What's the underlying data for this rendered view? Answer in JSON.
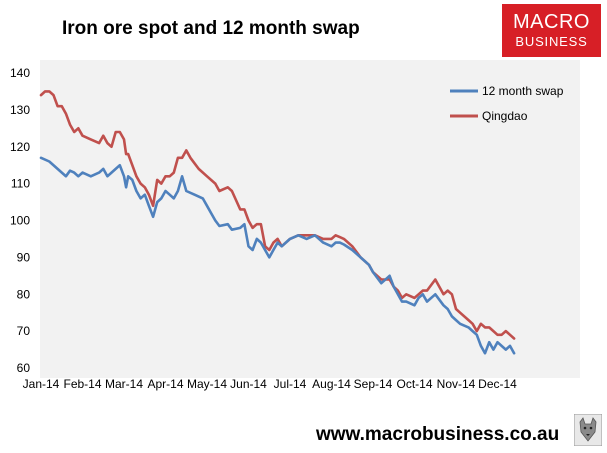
{
  "header": {
    "title": "Iron ore spot and 12 month swap",
    "logo_line1": "MACRO",
    "logo_line2": "BUSINESS"
  },
  "footer": {
    "url": "www.macrobusiness.co.au"
  },
  "colors": {
    "swap": "#4f81bd",
    "qingdao": "#c0504d",
    "plot_bg": "#f2f2f2",
    "brand": "#d71f26"
  },
  "chart_data": {
    "type": "line",
    "title": "Iron ore spot and 12 month swap",
    "xlabel": "",
    "ylabel": "",
    "ylim": [
      60,
      140
    ],
    "yticks": [
      60,
      70,
      80,
      90,
      100,
      110,
      120,
      130,
      140
    ],
    "xlim": [
      0,
      11.7
    ],
    "xticks": [
      "Jan-14",
      "Feb-14",
      "Mar-14",
      "Apr-14",
      "May-14",
      "Jun-14",
      "Jul-14",
      "Aug-14",
      "Sep-14",
      "Oct-14",
      "Nov-14",
      "Dec-14"
    ],
    "grid": false,
    "legend_position": "top-right",
    "series": [
      {
        "name": "12 month swap",
        "color": "#4f81bd",
        "x": [
          0,
          0.2,
          0.4,
          0.5,
          0.55,
          0.6,
          0.7,
          0.8,
          0.9,
          1.0,
          1.2,
          1.4,
          1.5,
          1.6,
          1.7,
          1.8,
          1.9,
          2.0,
          2.05,
          2.1,
          2.2,
          2.3,
          2.4,
          2.5,
          2.6,
          2.7,
          2.8,
          2.9,
          3.0,
          3.1,
          3.2,
          3.3,
          3.4,
          3.5,
          3.7,
          3.9,
          4.0,
          4.1,
          4.2,
          4.3,
          4.5,
          4.6,
          4.8,
          4.9,
          5.0,
          5.1,
          5.2,
          5.3,
          5.4,
          5.5,
          5.6,
          5.7,
          5.8,
          6.0,
          6.2,
          6.4,
          6.6,
          6.8,
          7.0,
          7.1,
          7.2,
          7.3,
          7.5,
          7.7,
          7.9,
          8.0,
          8.2,
          8.4,
          8.5,
          8.6,
          8.7,
          8.8,
          9.0,
          9.1,
          9.2,
          9.3,
          9.5,
          9.7,
          9.8,
          9.9,
          10.0,
          10.1,
          10.3,
          10.4,
          10.5,
          10.6,
          10.7,
          10.8,
          10.9,
          11.0,
          11.1,
          11.2,
          11.3,
          11.4
        ],
        "values": [
          117,
          116,
          114,
          113,
          112.5,
          112,
          113.5,
          113,
          112,
          113,
          112,
          113,
          114,
          112,
          113,
          114,
          115,
          112,
          109,
          112,
          111,
          108,
          106,
          107,
          104,
          101,
          105,
          106,
          108,
          107,
          106,
          108,
          112,
          108,
          107,
          106,
          104,
          102,
          100,
          98.5,
          99,
          97.5,
          98,
          99,
          93,
          92,
          95,
          94,
          92,
          90,
          92,
          94,
          93,
          95,
          96,
          95,
          96,
          94,
          93,
          94,
          94,
          93.5,
          92,
          90,
          88,
          86,
          83,
          85,
          82,
          80,
          78,
          78,
          77,
          79,
          80,
          78,
          80,
          77,
          76,
          74,
          73,
          72,
          71,
          70,
          69,
          66,
          64,
          67,
          65,
          67,
          66,
          65,
          66,
          64
        ]
      },
      {
        "name": "Qingdao",
        "color": "#c0504d",
        "x": [
          0,
          0.1,
          0.2,
          0.3,
          0.4,
          0.5,
          0.6,
          0.7,
          0.8,
          0.9,
          1.0,
          1.2,
          1.4,
          1.5,
          1.6,
          1.7,
          1.8,
          1.9,
          2.0,
          2.05,
          2.1,
          2.2,
          2.3,
          2.4,
          2.5,
          2.6,
          2.7,
          2.8,
          2.9,
          3.0,
          3.1,
          3.2,
          3.3,
          3.4,
          3.5,
          3.6,
          3.8,
          4.0,
          4.2,
          4.3,
          4.5,
          4.6,
          4.8,
          4.9,
          5.0,
          5.1,
          5.2,
          5.3,
          5.4,
          5.5,
          5.6,
          5.7,
          5.8,
          6.0,
          6.2,
          6.4,
          6.6,
          6.8,
          7.0,
          7.1,
          7.2,
          7.3,
          7.5,
          7.7,
          7.9,
          8.0,
          8.2,
          8.4,
          8.5,
          8.6,
          8.7,
          8.8,
          9.0,
          9.1,
          9.2,
          9.3,
          9.5,
          9.7,
          9.8,
          9.9,
          10.0,
          10.1,
          10.3,
          10.4,
          10.5,
          10.6,
          10.7,
          10.8,
          10.9,
          11.0,
          11.1,
          11.2,
          11.3,
          11.4
        ],
        "values": [
          134,
          135,
          135,
          134,
          131,
          131,
          129,
          126,
          124,
          125,
          123,
          122,
          121,
          123,
          121,
          120,
          124,
          124,
          122,
          118,
          118,
          115,
          112,
          110,
          109,
          107,
          104,
          111,
          110,
          112,
          112,
          113,
          117,
          117,
          119,
          117,
          114,
          112,
          110,
          108,
          109,
          108,
          103,
          103,
          100,
          98,
          99,
          99,
          93,
          92,
          94,
          95,
          93,
          95,
          96,
          96,
          96,
          95,
          95,
          96,
          95.5,
          95,
          93,
          90,
          88,
          86,
          84,
          84,
          82,
          81,
          79,
          80,
          79,
          80,
          81,
          81,
          84,
          80,
          81,
          80,
          76,
          75,
          73,
          72,
          70,
          72,
          71,
          71,
          70,
          69,
          69,
          70,
          69,
          68
        ]
      }
    ]
  }
}
